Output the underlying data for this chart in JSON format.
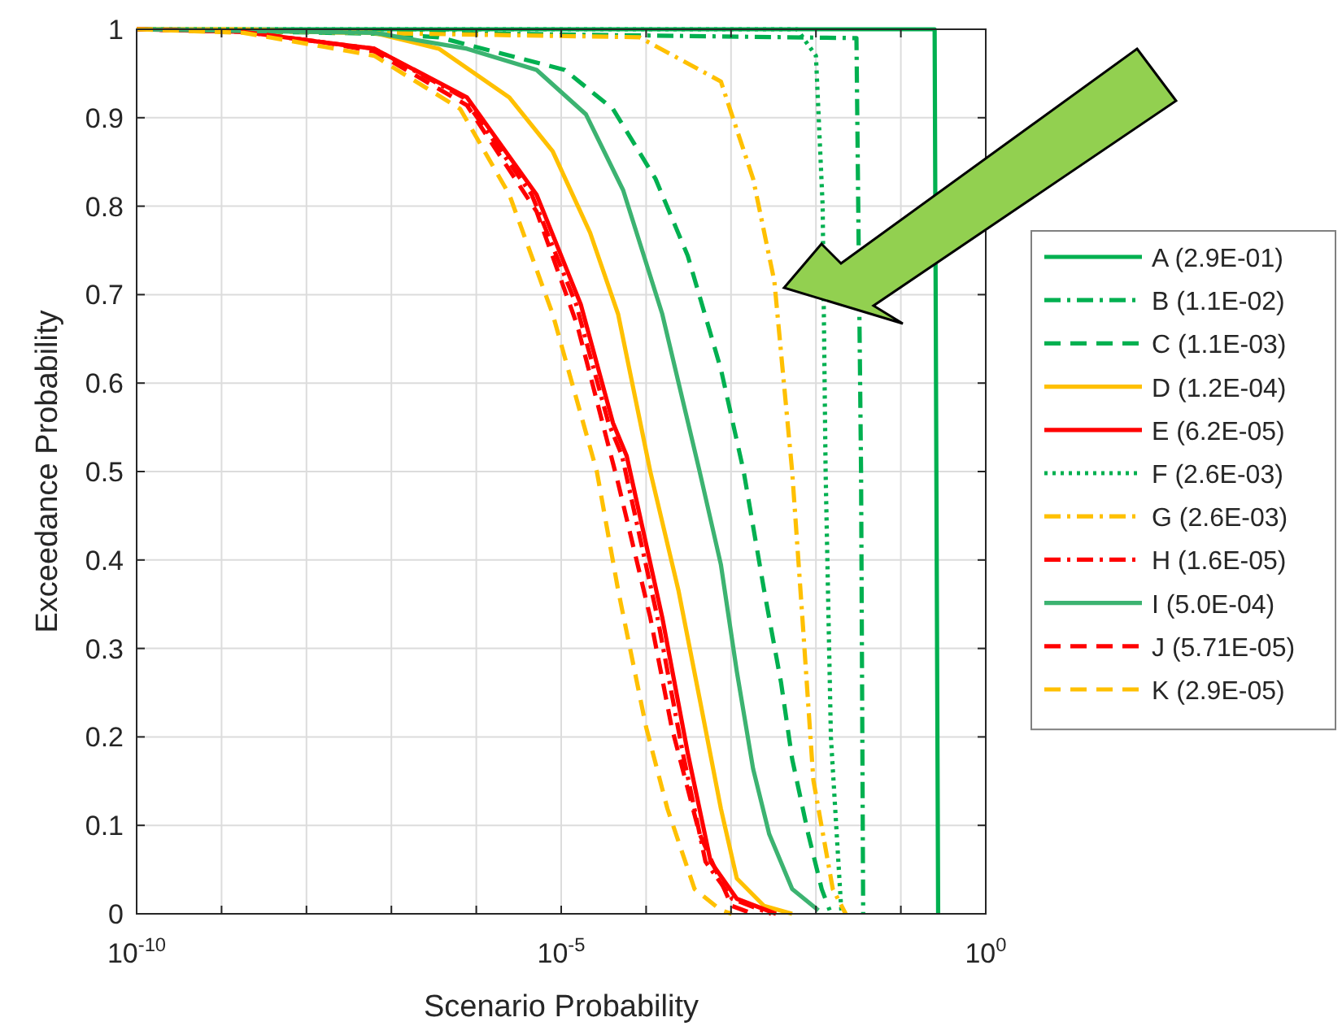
{
  "chart_data": {
    "type": "line",
    "xlabel": "Scenario Probability",
    "ylabel": "Exceedance Probability",
    "log": "x",
    "grid": true,
    "legend": "right",
    "marker": "none",
    "xlim": [
      1e-10,
      1
    ],
    "xticks": [
      {
        "value": 1e-10,
        "label": "10$^{-10}$"
      },
      {
        "value": 1e-09,
        "label": null
      },
      {
        "value": 1e-08,
        "label": null
      },
      {
        "value": 1e-07,
        "label": null
      },
      {
        "value": 1e-06,
        "label": null
      },
      {
        "value": 1e-05,
        "label": "10$^{-5}$"
      },
      {
        "value": 0.0001,
        "label": null
      },
      {
        "value": 0.001,
        "label": null
      },
      {
        "value": 0.01,
        "label": null
      },
      {
        "value": 0.1,
        "label": null
      },
      {
        "value": 1,
        "label": "10$^{0}$"
      }
    ],
    "ylim": [
      0,
      1
    ],
    "yticks": [
      0,
      0.1,
      0.2,
      0.3,
      0.4,
      0.5,
      0.6,
      0.7,
      0.8,
      0.9,
      1
    ],
    "series": [
      {
        "name": "A (2.9E-01)",
        "color": "#00b050",
        "line_style": "solid",
        "x": [
          1e-10,
          0.25,
          0.262,
          0.275
        ],
        "values": [
          1,
          1,
          0.5,
          0
        ]
      },
      {
        "name": "B (1.1E-02)",
        "color": "#00b050",
        "line_style": "dashdot",
        "x": [
          1e-10,
          0.03,
          0.034,
          0.036
        ],
        "values": [
          1,
          0.99,
          0.5,
          0
        ]
      },
      {
        "name": "C (1.1E-03)",
        "color": "#00b050",
        "line_style": "dashed",
        "x": [
          1e-10,
          6.3e-08,
          3.63e-07,
          1.1e-05,
          4.07e-05,
          0.000129,
          0.000309,
          0.000759,
          0.00141,
          0.00245,
          0.00389,
          0.00525,
          0.00813,
          0.0117,
          0.0145
        ],
        "values": [
          1,
          0.995,
          0.991,
          0.954,
          0.91,
          0.831,
          0.744,
          0.616,
          0.5,
          0.366,
          0.261,
          0.175,
          0.09,
          0.028,
          0.004
        ]
      },
      {
        "name": "D (1.2E-04)",
        "color": "#ffc000",
        "line_style": "solid",
        "x": [
          1e-10,
          1.82e-09,
          6.3e-08,
          3.63e-07,
          2.45e-06,
          7.94e-06,
          2.19e-05,
          4.68e-05,
          0.000112,
          0.00024,
          0.000427,
          0.000759,
          0.00117,
          0.00245,
          0.00525
        ],
        "values": [
          1,
          1,
          0.996,
          0.978,
          0.923,
          0.862,
          0.77,
          0.678,
          0.5,
          0.366,
          0.243,
          0.119,
          0.04,
          0.009,
          0
        ]
      },
      {
        "name": "E (6.2E-05)",
        "color": "#ff0000",
        "line_style": "solid",
        "x": [
          1e-10,
          1.82e-09,
          1.66e-08,
          6.3e-08,
          7.76e-07,
          5.13e-06,
          1.7e-05,
          4.07e-05,
          5.89e-05,
          0.000155,
          0.000309,
          0.000575,
          0.00117,
          0.00339
        ],
        "values": [
          1,
          0.997,
          0.985,
          0.978,
          0.923,
          0.813,
          0.689,
          0.555,
          0.518,
          0.335,
          0.182,
          0.059,
          0.017,
          0
        ]
      },
      {
        "name": "F (2.6E-03)",
        "color": "#00b050",
        "line_style": "dotted",
        "x": [
          1e-10,
          0.006,
          0.01,
          0.012,
          0.013,
          0.015,
          0.02
        ],
        "values": [
          1,
          1,
          0.97,
          0.8,
          0.5,
          0.2,
          0
        ]
      },
      {
        "name": "G (2.6E-03)",
        "color": "#ffc000",
        "line_style": "dashdot",
        "x": [
          1e-10,
          8.32e-05,
          0.000759,
          0.00182,
          0.00324,
          0.00525,
          0.00692,
          0.00933,
          0.0158,
          0.0224
        ],
        "values": [
          1,
          0.991,
          0.941,
          0.831,
          0.715,
          0.5,
          0.335,
          0.151,
          0.028,
          0
        ]
      },
      {
        "name": "H (1.6E-05)",
        "color": "#ff0000",
        "line_style": "dashdot",
        "x": [
          1e-10,
          1.82e-09,
          1.66e-08,
          6.3e-08,
          7e-07,
          4.5e-06,
          1.5e-05,
          3.6e-05,
          5.2e-05,
          0.000136,
          0.00027,
          0.0005,
          0.00103,
          0.00297
        ],
        "values": [
          1,
          0.997,
          0.985,
          0.978,
          0.923,
          0.813,
          0.689,
          0.555,
          0.518,
          0.335,
          0.182,
          0.059,
          0.017,
          0
        ]
      },
      {
        "name": "I (5.0E-04)",
        "color": "#3cb371",
        "line_style": "solid",
        "x": [
          1e-10,
          6.3e-08,
          7.76e-07,
          5.13e-06,
          1.95e-05,
          5.37e-05,
          0.000155,
          0.000427,
          0.000759,
          0.00117,
          0.00182,
          0.00282,
          0.00525,
          0.0107
        ],
        "values": [
          1,
          0.996,
          0.978,
          0.954,
          0.904,
          0.818,
          0.678,
          0.5,
          0.395,
          0.274,
          0.164,
          0.09,
          0.028,
          0.004
        ]
      },
      {
        "name": "J (5.71E-05)",
        "color": "#ff0000",
        "line_style": "dashed",
        "x": [
          1e-10,
          1.82e-09,
          1.66e-08,
          6.3e-08,
          7.76e-07,
          5.13e-06,
          1.55e-05,
          4.68e-05,
          0.000112,
          0.0002,
          0.000427,
          0.00102,
          0.00182
        ],
        "values": [
          1,
          0.997,
          0.985,
          0.975,
          0.914,
          0.794,
          0.665,
          0.487,
          0.335,
          0.211,
          0.09,
          0.009,
          0
        ]
      },
      {
        "name": "K (2.9E-05)",
        "color": "#ffc000",
        "line_style": "dashed",
        "x": [
          1e-10,
          1.82e-09,
          1.66e-08,
          6.3e-08,
          6.46e-07,
          2.45e-06,
          7.94e-06,
          2.63e-05,
          4.68e-05,
          0.0001,
          0.000178,
          0.000372,
          0.000759,
          0.00102
        ],
        "values": [
          1,
          0.996,
          0.98,
          0.97,
          0.91,
          0.813,
          0.678,
          0.5,
          0.366,
          0.211,
          0.119,
          0.028,
          0.004,
          0
        ]
      }
    ]
  }
}
